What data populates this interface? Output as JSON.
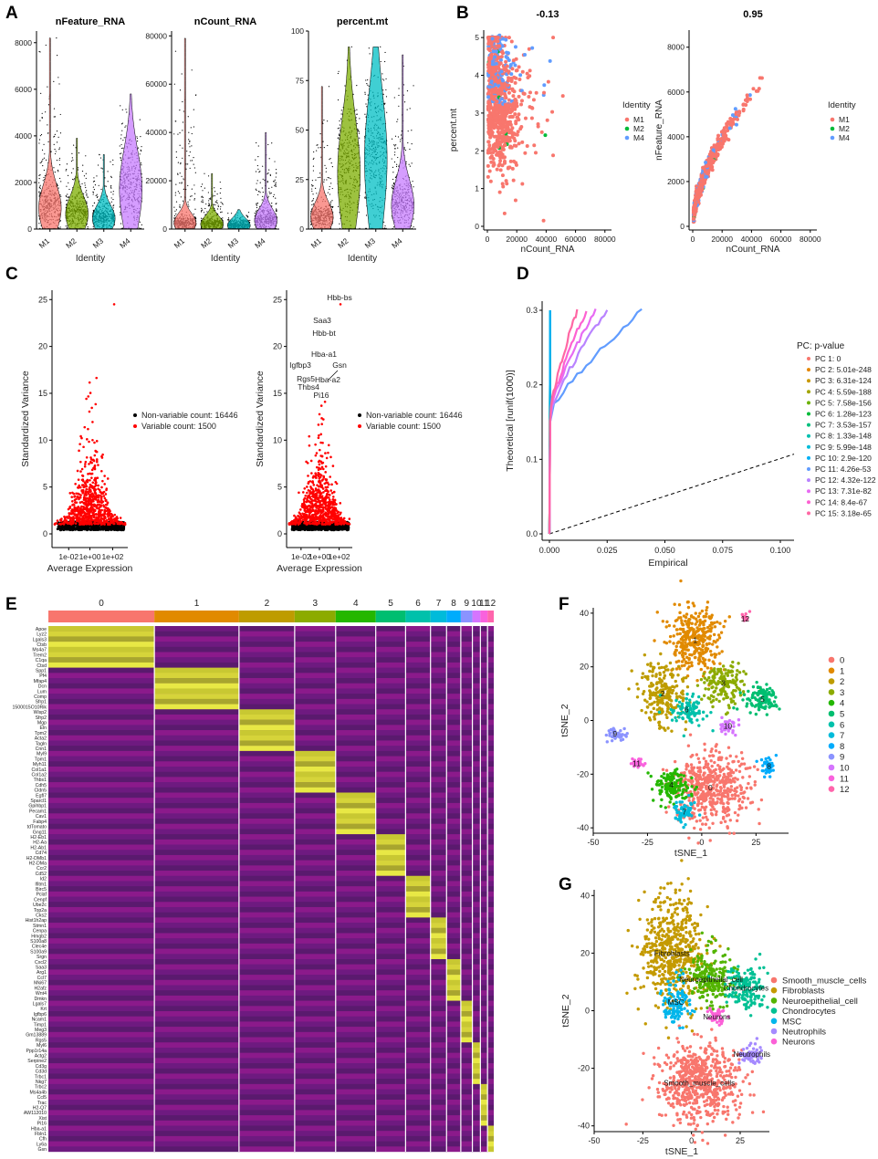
{
  "figure": {
    "panel_labels": [
      "A",
      "B",
      "C",
      "D",
      "E",
      "F",
      "G"
    ]
  },
  "chart_data": [
    {
      "panel": "A",
      "type": "violin",
      "xlabel": "Identity",
      "categories": [
        "M1",
        "M2",
        "M3",
        "M4"
      ],
      "colors": [
        "#F8766D",
        "#7CAE00",
        "#00BFC4",
        "#C77CFF"
      ],
      "plots": [
        {
          "title": "nFeature_RNA",
          "ylim": [
            0,
            8500
          ],
          "yticks": [
            0,
            2000,
            4000,
            6000,
            8000
          ],
          "medians": [
            900,
            650,
            450,
            1700
          ],
          "maxes": [
            8200,
            3900,
            3200,
            5800
          ]
        },
        {
          "title": "nCount_RNA",
          "ylim": [
            0,
            82000
          ],
          "yticks": [
            0,
            20000,
            40000,
            60000,
            80000
          ],
          "medians": [
            2500,
            2000,
            1500,
            3500
          ],
          "maxes": [
            79000,
            23000,
            8000,
            40000
          ]
        },
        {
          "title": "percent.mt",
          "ylim": [
            0,
            100
          ],
          "yticks": [
            0,
            25,
            50,
            75,
            100
          ],
          "medians": [
            6,
            28,
            35,
            12
          ],
          "maxes": [
            72,
            92,
            92,
            88
          ]
        }
      ]
    },
    {
      "panel": "B",
      "type": "scatter",
      "legend_title": "Identity",
      "legend": [
        "M1",
        "M2",
        "M4"
      ],
      "colors": [
        "#F8766D",
        "#00BA38",
        "#619CFF"
      ],
      "plots": [
        {
          "title": "-0.13",
          "xlabel": "nCount_RNA",
          "ylabel": "percent.mt",
          "xlim": [
            0,
            82000
          ],
          "ylim": [
            0,
            5.1
          ],
          "xticks": [
            0,
            20000,
            40000,
            60000,
            80000
          ],
          "yticks": [
            0,
            1,
            2,
            3,
            4,
            5
          ]
        },
        {
          "title": "0.95",
          "xlabel": "nCount_RNA",
          "ylabel": "nFeature_RNA",
          "xlim": [
            0,
            82000
          ],
          "ylim": [
            0,
            8600
          ],
          "xticks": [
            0,
            20000,
            40000,
            60000,
            80000
          ],
          "yticks": [
            0,
            2000,
            4000,
            6000,
            8000
          ]
        }
      ]
    },
    {
      "panel": "C",
      "type": "scatter",
      "xlabel": "Average Expression",
      "ylabel": "Standardized Variance",
      "xticks": [
        "1e-02",
        "1e+00",
        "1e+02"
      ],
      "yticks": [
        0,
        5,
        10,
        15,
        20,
        25
      ],
      "ylim": [
        0,
        26
      ],
      "legend": [
        "Non-variable count: 16446",
        "Variable count: 1500"
      ],
      "colors": [
        "#000000",
        "#FF0000"
      ],
      "labeled_genes": [
        "Hbb-bs",
        "Saa3",
        "Hbb-bt",
        "Hba-a1",
        "Igfbp3",
        "Gsn",
        "Rgs5",
        "Hba-a2",
        "Thbs4",
        "Pi16"
      ]
    },
    {
      "panel": "D",
      "type": "line",
      "xlabel": "Empirical",
      "ylabel": "Theoretical [runif(1000)]",
      "xlim": [
        0,
        0.105
      ],
      "ylim": [
        0,
        0.305
      ],
      "xticks": [
        "0.000",
        "0.025",
        "0.050",
        "0.075",
        "0.100"
      ],
      "yticks": [
        "0.0",
        "0.1",
        "0.2",
        "0.3"
      ],
      "legend_title": "PC: p-value",
      "series": [
        {
          "name": "PC 1: 0",
          "color": "#F8766D"
        },
        {
          "name": "PC 2: 5.01e-248",
          "color": "#E58700"
        },
        {
          "name": "PC 3: 6.31e-124",
          "color": "#C99800"
        },
        {
          "name": "PC 4: 5.59e-188",
          "color": "#A3A500"
        },
        {
          "name": "PC 5: 7.58e-156",
          "color": "#6BB100"
        },
        {
          "name": "PC 6: 1.28e-123",
          "color": "#00BA38"
        },
        {
          "name": "PC 7: 3.53e-157",
          "color": "#00BF7D"
        },
        {
          "name": "PC 8: 1.33e-148",
          "color": "#00C0AF"
        },
        {
          "name": "PC 9: 5.99e-148",
          "color": "#00BCD8"
        },
        {
          "name": "PC 10: 2.9e-120",
          "color": "#00B0F6"
        },
        {
          "name": "PC 11: 4.26e-53",
          "color": "#619CFF"
        },
        {
          "name": "PC 12: 4.32e-122",
          "color": "#B983FF"
        },
        {
          "name": "PC 13: 7.31e-82",
          "color": "#E76BF3"
        },
        {
          "name": "PC 14: 8.4e-67",
          "color": "#FD61D1"
        },
        {
          "name": "PC 15: 3.18e-65",
          "color": "#FF67A4"
        }
      ]
    },
    {
      "panel": "E",
      "type": "heatmap",
      "clusters": [
        "0",
        "1",
        "2",
        "3",
        "4",
        "5",
        "6",
        "7",
        "8",
        "9",
        "10",
        "11",
        "12"
      ],
      "cluster_colors": [
        "#F8766D",
        "#E18A00",
        "#BE9C00",
        "#8CAB00",
        "#24B700",
        "#00BE70",
        "#00C1AB",
        "#00BBDA",
        "#00ACFC",
        "#8B93FF",
        "#D575FE",
        "#F962DD",
        "#FF65AC"
      ],
      "cluster_weights": [
        0.238,
        0.19,
        0.125,
        0.092,
        0.09,
        0.067,
        0.056,
        0.036,
        0.032,
        0.026,
        0.018,
        0.016,
        0.014
      ],
      "genes": [
        "Apoe",
        "Lyz2",
        "Lgals3",
        "Ctsb",
        "Ms4a7",
        "Trem2",
        "C1qa",
        "Ctsd",
        "Spp1",
        "Pf4",
        "Mfap4",
        "Dcn",
        "Lum",
        "Comp",
        "Sfrp1",
        "1500015O10Rik",
        "Wisp2",
        "Sfrp2",
        "Mgp",
        "Eln",
        "Tpm2",
        "Acta2",
        "Tagln",
        "Cnn1",
        "Myl9",
        "Tpm1",
        "Myh11",
        "Col1a1",
        "Col1a2",
        "Thbs1",
        "Cdh5",
        "Cldn5",
        "Egfl7",
        "Sparcl1",
        "Gpihbp1",
        "Pecam1",
        "Cav1",
        "Fabp4",
        "tdTomato",
        "Gng11",
        "H2-Eb1",
        "H2-Aa",
        "H2-Ab1",
        "Cd74",
        "H2-DMb1",
        "H2-DMa",
        "Ccr2",
        "Cd52",
        "Id2",
        "Ifitm1",
        "Birc5",
        "Pclaf",
        "Cenpf",
        "Ube2c",
        "Top2a",
        "Cks2",
        "Hist1h2ap",
        "Stmn1",
        "Cenpa",
        "Hmgb2",
        "S100a8",
        "Clec4e",
        "S100a9",
        "Srgn",
        "Cxcl2",
        "Saa3",
        "Arg1",
        "Ccl7",
        "Mki67",
        "H2afz",
        "Wnt4",
        "Dmkn",
        "Lgals7",
        "Krt",
        "Igfbp6",
        "Ncam1",
        "Timp1",
        "Meg3",
        "Gm13889",
        "Rgs5",
        "Myl6",
        "Ppp1r14a",
        "Actg2",
        "Serpine2",
        "Cd3g",
        "Cd3d",
        "Trbc1",
        "Nkg7",
        "Trbc2",
        "Ms4a4b",
        "Ccl5",
        "Trac",
        "H2-Q7",
        "AW112010",
        "Xist",
        "Pi16",
        "Hba-a1",
        "Fbln1",
        "Cfh",
        "Ly6a",
        "Gsn"
      ],
      "color_scale": [
        "#FF00FF",
        "#000000",
        "#FFFF00"
      ]
    },
    {
      "panel": "F",
      "type": "scatter",
      "xlabel": "tSNE_1",
      "ylabel": "tSNE_2",
      "xlim": [
        -50,
        40
      ],
      "ylim": [
        -42,
        42
      ],
      "xticks": [
        -50,
        -25,
        0,
        25
      ],
      "yticks": [
        -40,
        -20,
        0,
        20,
        40
      ],
      "legend": [
        "0",
        "1",
        "2",
        "3",
        "4",
        "5",
        "6",
        "7",
        "8",
        "9",
        "10",
        "11",
        "12"
      ],
      "colors": [
        "#F8766D",
        "#E18A00",
        "#BE9C00",
        "#8CAB00",
        "#24B700",
        "#00BE70",
        "#00C1AB",
        "#00BBDA",
        "#00ACFC",
        "#8B93FF",
        "#D575FE",
        "#F962DD",
        "#FF65AC"
      ],
      "clusters": [
        {
          "label": "0",
          "cx": 4,
          "cy": -25,
          "sx": 9,
          "sy": 7,
          "n": 500
        },
        {
          "label": "1",
          "cx": -3,
          "cy": 30,
          "sx": 6,
          "sy": 6,
          "n": 330
        },
        {
          "label": "2",
          "cx": -18,
          "cy": 10,
          "sx": 5,
          "sy": 6,
          "n": 220
        },
        {
          "label": "3",
          "cx": 10,
          "cy": 14,
          "sx": 5,
          "sy": 4,
          "n": 150
        },
        {
          "label": "4",
          "cx": -14,
          "cy": -24,
          "sx": 4,
          "sy": 3,
          "n": 150
        },
        {
          "label": "5",
          "cx": 28,
          "cy": 8,
          "sx": 4,
          "sy": 2.5,
          "n": 110
        },
        {
          "label": "6",
          "cx": -7,
          "cy": 4,
          "sx": 4,
          "sy": 3,
          "n": 90
        },
        {
          "label": "7",
          "cx": -8,
          "cy": -34,
          "sx": 2.5,
          "sy": 2.5,
          "n": 60
        },
        {
          "label": "8",
          "cx": 31,
          "cy": -17,
          "sx": 2,
          "sy": 1.5,
          "n": 50
        },
        {
          "label": "9",
          "cx": -40,
          "cy": -5,
          "sx": 2.5,
          "sy": 1.5,
          "n": 40
        },
        {
          "label": "10",
          "cx": 12,
          "cy": -2,
          "sx": 2,
          "sy": 1.5,
          "n": 35
        },
        {
          "label": "11",
          "cx": -30,
          "cy": -16,
          "sx": 1.5,
          "sy": 1,
          "n": 25
        },
        {
          "label": "12",
          "cx": 20,
          "cy": 38,
          "sx": 1,
          "sy": 1,
          "n": 15
        }
      ]
    },
    {
      "panel": "G",
      "type": "scatter",
      "xlabel": "tSNE_1",
      "ylabel": "tSNE_2",
      "xlim": [
        -50,
        40
      ],
      "ylim": [
        -42,
        42
      ],
      "xticks": [
        -50,
        -25,
        0,
        25
      ],
      "yticks": [
        -40,
        -20,
        0,
        20,
        40
      ],
      "legend": [
        "Smooth_muscle_cells",
        "Fibroblasts",
        "Neuroepithelial_cell",
        "Chondrocytes",
        "MSC",
        "Neutrophils",
        "Neurons"
      ],
      "colors": [
        "#F8766D",
        "#C49A00",
        "#53B400",
        "#00C094",
        "#00B6EB",
        "#A58AFF",
        "#FB61D7"
      ],
      "clusters": [
        {
          "label": "Smooth_muscle_cells",
          "cx": 4,
          "cy": -25,
          "sx": 10,
          "sy": 7,
          "n": 650
        },
        {
          "label": "Fibroblasts",
          "cx": -10,
          "cy": 20,
          "sx": 8,
          "sy": 10,
          "n": 550
        },
        {
          "label": "Neuroepithelial_cell",
          "cx": 10,
          "cy": 11,
          "sx": 6,
          "sy": 5,
          "n": 220
        },
        {
          "label": "Chondrocytes",
          "cx": 28,
          "cy": 8,
          "sx": 5,
          "sy": 4,
          "n": 150
        },
        {
          "label": "MSC",
          "cx": -8,
          "cy": 3,
          "sx": 4,
          "sy": 4,
          "n": 110
        },
        {
          "label": "Neutrophils",
          "cx": 31,
          "cy": -15,
          "sx": 3,
          "sy": 2,
          "n": 60
        },
        {
          "label": "Neurons",
          "cx": 13,
          "cy": -2,
          "sx": 2,
          "sy": 1.5,
          "n": 40
        }
      ]
    }
  ]
}
